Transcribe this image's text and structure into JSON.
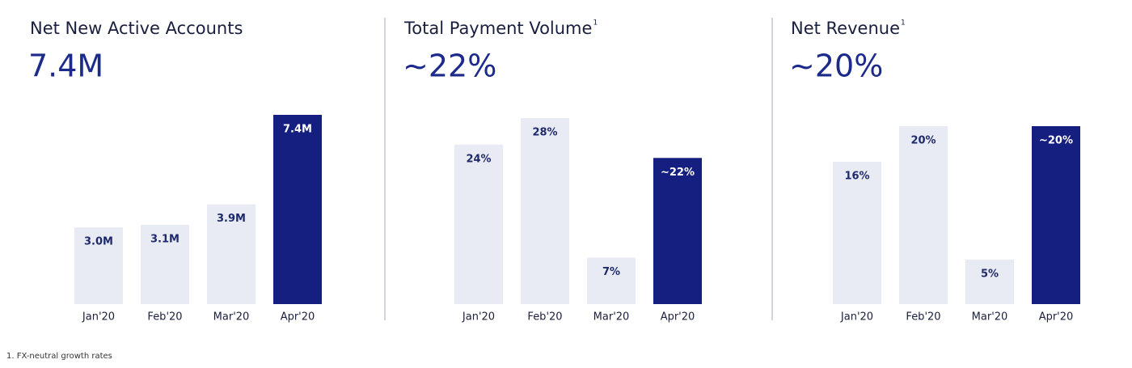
{
  "chart_data": [
    {
      "type": "bar",
      "title": "Net New Active Accounts",
      "headline": "7.4M",
      "categories": [
        "Jan'20",
        "Feb'20",
        "Mar'20",
        "Apr'20"
      ],
      "values": [
        3.0,
        3.1,
        3.9,
        7.4
      ],
      "value_labels": [
        "3.0M",
        "3.1M",
        "3.9M",
        "7.4M"
      ],
      "colors": [
        "#e8ebf4",
        "#e8ebf4",
        "#e8ebf4",
        "#151f80"
      ]
    },
    {
      "type": "bar",
      "title": "Total Payment Volume",
      "title_note": "1",
      "headline": "~22%",
      "categories": [
        "Jan'20",
        "Feb'20",
        "Mar'20",
        "Apr'20"
      ],
      "values": [
        24,
        28,
        7,
        22
      ],
      "value_labels": [
        "24%",
        "28%",
        "7%",
        "~22%"
      ],
      "colors": [
        "#e8ebf4",
        "#e8ebf4",
        "#e8ebf4",
        "#151f80"
      ]
    },
    {
      "type": "bar",
      "title": "Net Revenue",
      "title_note": "1",
      "headline": "~20%",
      "categories": [
        "Jan'20",
        "Feb'20",
        "Mar'20",
        "Apr'20"
      ],
      "values": [
        16,
        20,
        5,
        20
      ],
      "value_labels": [
        "16%",
        "20%",
        "5%",
        "~20%"
      ],
      "colors": [
        "#e8ebf4",
        "#e8ebf4",
        "#e8ebf4",
        "#151f80"
      ]
    }
  ],
  "footnote": "1. FX-neutral growth rates"
}
